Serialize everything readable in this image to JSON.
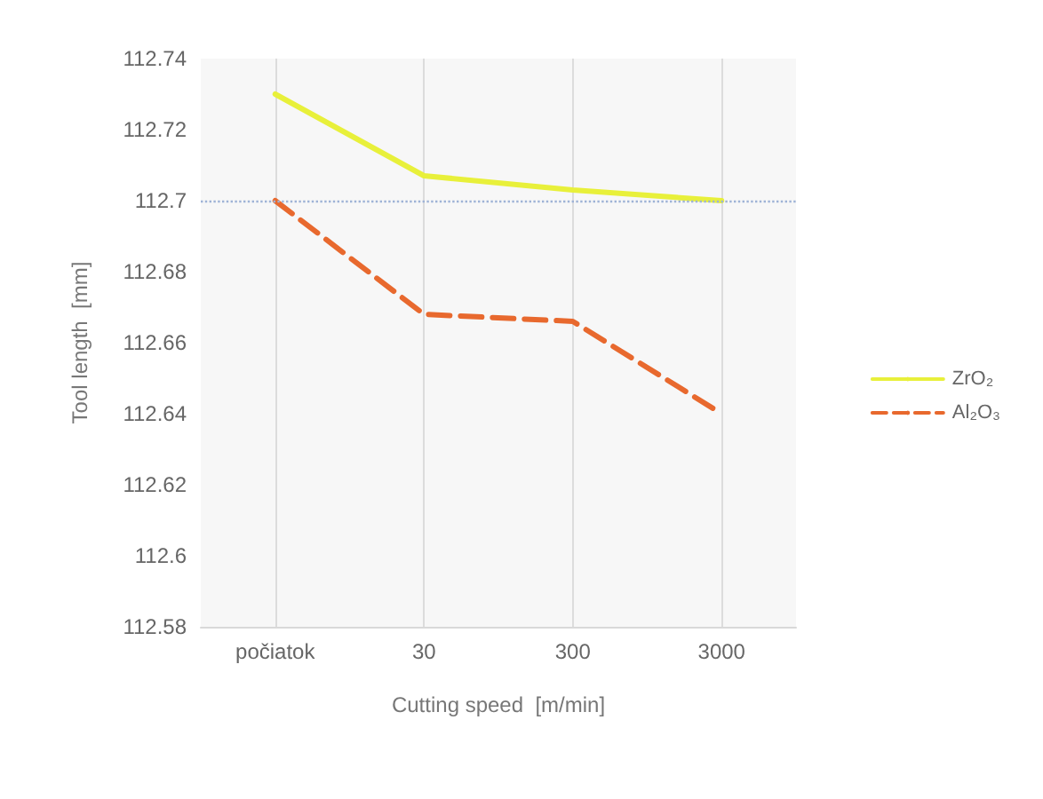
{
  "chart_data": {
    "type": "line",
    "xlabel": "Cutting speed  [m/min]",
    "ylabel": "Tool length  [mm]",
    "categories": [
      "počiatok",
      "30",
      "300",
      "3000"
    ],
    "series": [
      {
        "name": "ZrO₂",
        "color": "#e8f03a",
        "line_style": "solid",
        "values": [
          112.73,
          112.707,
          112.703,
          112.7
        ]
      },
      {
        "name": "Al₂O₃",
        "color": "#e8692e",
        "line_style": "dashed",
        "values": [
          112.7,
          112.668,
          112.666,
          112.64
        ]
      }
    ],
    "ylim": [
      112.58,
      112.74
    ],
    "yticks": [
      112.58,
      112.6,
      112.62,
      112.64,
      112.66,
      112.68,
      112.7,
      112.72,
      112.74
    ],
    "ref_lines": [
      {
        "axis": "y",
        "value": 112.7,
        "color": "#9fb3d6",
        "line_style": "dotted"
      }
    ],
    "grid": "x",
    "legend": "right",
    "marker": "none"
  }
}
